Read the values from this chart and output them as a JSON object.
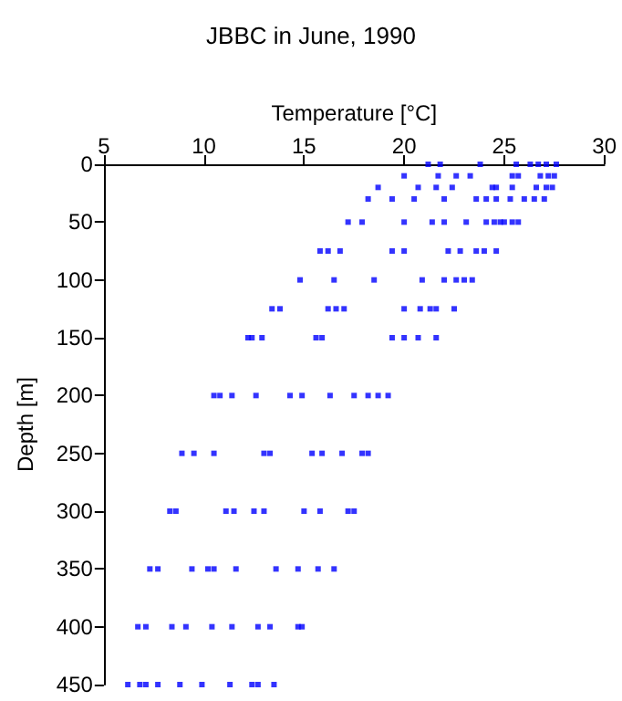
{
  "chart_data": {
    "type": "scatter",
    "title": "JBBC in June, 1990",
    "xlabel": "Temperature [°C]",
    "ylabel": "Depth [m]",
    "xlim": [
      5,
      30
    ],
    "xticks": [
      5,
      10,
      15,
      20,
      25,
      30
    ],
    "ylim": [
      450,
      0
    ],
    "yticks": [
      0,
      50,
      100,
      150,
      200,
      250,
      300,
      350,
      400,
      450
    ],
    "grid": false,
    "marker": "square",
    "series": [
      {
        "color": "#0000ff",
        "x": [
          21.2,
          21.8,
          23.8,
          25.6,
          26.3,
          26.7,
          27.1,
          27.6,
          20.0,
          21.7,
          22.6,
          23.3,
          25.4,
          25.7,
          26.8,
          27.2,
          27.5,
          18.7,
          20.7,
          21.6,
          22.4,
          24.4,
          24.6,
          25.4,
          26.6,
          27.1,
          27.4,
          18.2,
          19.4,
          20.5,
          22.0,
          23.6,
          24.1,
          24.6,
          25.3,
          26.0,
          26.5,
          27.0,
          17.2,
          17.9,
          20.0,
          21.4,
          22.0,
          23.1,
          24.1,
          24.5,
          24.8,
          25.0,
          25.4,
          25.7,
          15.8,
          16.2,
          16.8,
          19.4,
          20.0,
          22.2,
          22.8,
          23.6,
          24.0,
          24.6,
          14.8,
          16.5,
          18.5,
          20.9,
          22.0,
          22.6,
          23.0,
          23.4,
          13.4,
          13.8,
          16.2,
          16.6,
          17.0,
          20.0,
          20.8,
          21.3,
          21.6,
          22.5,
          12.2,
          12.4,
          12.9,
          15.6,
          15.9,
          19.4,
          20.0,
          20.7,
          21.6,
          10.5,
          10.8,
          11.4,
          12.6,
          14.3,
          14.9,
          16.3,
          17.5,
          18.2,
          18.7,
          19.2,
          8.9,
          9.5,
          10.5,
          13.0,
          13.3,
          15.4,
          15.9,
          16.9,
          17.9,
          18.2,
          8.3,
          8.6,
          11.1,
          11.5,
          12.5,
          13.0,
          15.0,
          15.8,
          17.2,
          17.5,
          7.3,
          7.7,
          9.4,
          10.2,
          10.5,
          11.6,
          13.6,
          14.7,
          15.7,
          16.5,
          6.7,
          7.1,
          8.4,
          9.1,
          10.4,
          11.4,
          12.7,
          13.3,
          14.7,
          14.9,
          6.2,
          6.8,
          7.1,
          7.7,
          8.8,
          9.9,
          11.3,
          12.4,
          12.7,
          13.5
        ],
        "values": [
          0,
          0,
          0,
          0,
          0,
          0,
          0,
          0,
          10,
          10,
          10,
          10,
          10,
          10,
          10,
          10,
          10,
          20,
          20,
          20,
          20,
          20,
          20,
          20,
          20,
          20,
          20,
          30,
          30,
          30,
          30,
          30,
          30,
          30,
          30,
          30,
          30,
          30,
          50,
          50,
          50,
          50,
          50,
          50,
          50,
          50,
          50,
          50,
          50,
          50,
          75,
          75,
          75,
          75,
          75,
          75,
          75,
          75,
          75,
          75,
          100,
          100,
          100,
          100,
          100,
          100,
          100,
          100,
          125,
          125,
          125,
          125,
          125,
          125,
          125,
          125,
          125,
          125,
          150,
          150,
          150,
          150,
          150,
          150,
          150,
          150,
          150,
          200,
          200,
          200,
          200,
          200,
          200,
          200,
          200,
          200,
          200,
          200,
          250,
          250,
          250,
          250,
          250,
          250,
          250,
          250,
          250,
          250,
          300,
          300,
          300,
          300,
          300,
          300,
          300,
          300,
          300,
          300,
          350,
          350,
          350,
          350,
          350,
          350,
          350,
          350,
          350,
          350,
          400,
          400,
          400,
          400,
          400,
          400,
          400,
          400,
          400,
          400,
          450,
          450,
          450,
          450,
          450,
          450,
          450,
          450,
          450,
          450
        ]
      }
    ]
  }
}
